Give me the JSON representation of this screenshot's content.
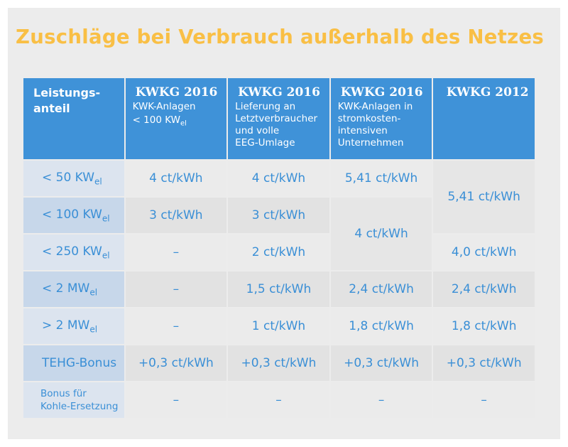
{
  "title": "Zuschläge bei Verbrauch außerhalb des Netzes",
  "header": {
    "stub_line1": "Leistungs-",
    "stub_line2": "anteil",
    "col1_main": "KWKG 2016",
    "col1_sub1": "KWK-Anlagen",
    "col1_sub2": "< 100 KW",
    "col1_sub2_sub": "el",
    "col2_main": "KWKG 2016",
    "col2_sub1": "Lieferung an",
    "col2_sub2": "Letztverbraucher",
    "col2_sub3": "und volle",
    "col2_sub4": "EEG-Umlage",
    "col3_main": "KWKG 2016",
    "col3_sub1": "KWK-Anlagen in",
    "col3_sub2": "stromkosten-",
    "col3_sub3": "intensiven",
    "col3_sub4": "Unternehmen",
    "col4_main": "KWKG 2012"
  },
  "rows": {
    "r1": {
      "label": "< 50 KW",
      "label_sub": "el",
      "c1": "4 ct/kWh",
      "c2": "4 ct/kWh",
      "c3": "5,41 ct/kWh"
    },
    "r2": {
      "label": "< 100 KW",
      "label_sub": "el",
      "c1": "3 ct/kWh",
      "c2": "3 ct/kWh"
    },
    "r3": {
      "label": "< 250 KW",
      "label_sub": "el",
      "c1": "–",
      "c2": "2 ct/kWh",
      "c4": "4,0 ct/kWh"
    },
    "r4": {
      "label": "< 2 MW",
      "label_sub": "el",
      "c1": "–",
      "c2": "1,5 ct/kWh",
      "c3": "2,4 ct/kWh",
      "c4": "2,4 ct/kWh"
    },
    "r5": {
      "label": "> 2 MW",
      "label_sub": "el",
      "c1": "–",
      "c2": "1 ct/kWh",
      "c3": "1,8 ct/kWh",
      "c4": "1,8 ct/kWh"
    },
    "r6": {
      "label": "TEHG-Bonus",
      "c1": "+0,3 ct/kWh",
      "c2": "+0,3 ct/kWh",
      "c3": "+0,3 ct/kWh",
      "c4": "+0,3 ct/kWh"
    },
    "r7": {
      "label_line1": "Bonus für",
      "label_line2": "Kohle-Ersetzung",
      "c1": "–",
      "c2": "–",
      "c3": "–",
      "c4": "–"
    }
  },
  "spans": {
    "c4_r1_r2": "5,41 ct/kWh",
    "c3_r2_r3": "4 ct/kWh"
  }
}
